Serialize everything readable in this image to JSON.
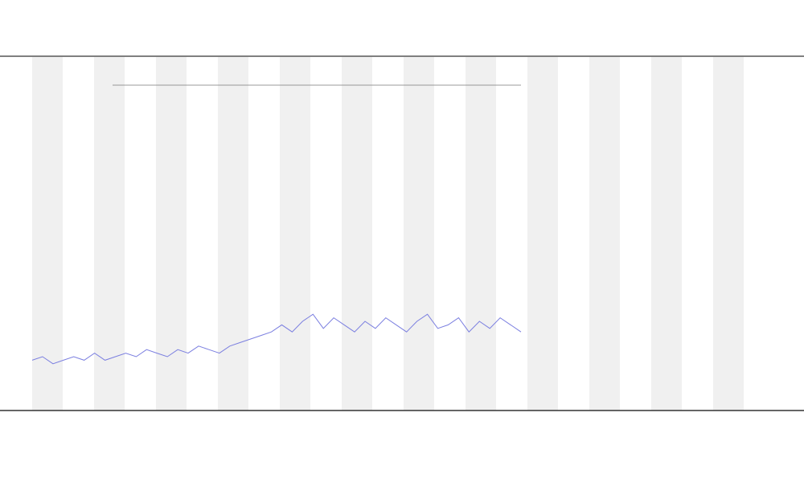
{
  "chart_data": {
    "type": "line",
    "categories": [
      null,
      null,
      null,
      null,
      null,
      null,
      null,
      null,
      null,
      null,
      null,
      null,
      null,
      null,
      null,
      null,
      null,
      null,
      null,
      null,
      null,
      null,
      null,
      null,
      null,
      null,
      null,
      null,
      null,
      null,
      null,
      null,
      null,
      null,
      null,
      null,
      null,
      null,
      null,
      null,
      null,
      null,
      null,
      null,
      null,
      null,
      null,
      null
    ],
    "series": [
      {
        "color": "#7b7fe0",
        "values": [
          14,
          15,
          13,
          14,
          15,
          14,
          16,
          14,
          15,
          16,
          15,
          17,
          16,
          15,
          17,
          16,
          18,
          17,
          16,
          18,
          19,
          20,
          21,
          22,
          24,
          22,
          25,
          27,
          23,
          26,
          24,
          22,
          25,
          23,
          26,
          24,
          22,
          25,
          27,
          23,
          24,
          26,
          22,
          25,
          23,
          26,
          24,
          22
        ]
      }
    ],
    "ylim": [
      0,
      100
    ]
  }
}
